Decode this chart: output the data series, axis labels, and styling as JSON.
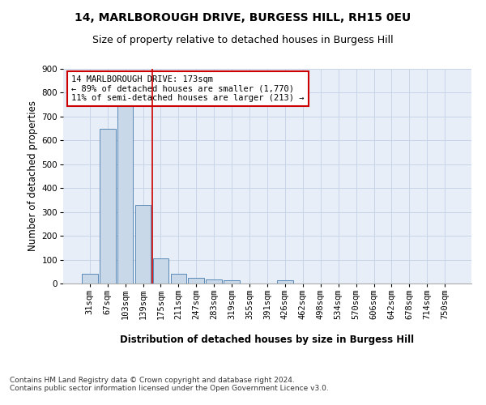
{
  "title_line1": "14, MARLBOROUGH DRIVE, BURGESS HILL, RH15 0EU",
  "title_line2": "Size of property relative to detached houses in Burgess Hill",
  "xlabel": "Distribution of detached houses by size in Burgess Hill",
  "ylabel": "Number of detached properties",
  "categories": [
    "31sqm",
    "67sqm",
    "103sqm",
    "139sqm",
    "175sqm",
    "211sqm",
    "247sqm",
    "283sqm",
    "319sqm",
    "355sqm",
    "391sqm",
    "426sqm",
    "462sqm",
    "498sqm",
    "534sqm",
    "570sqm",
    "606sqm",
    "642sqm",
    "678sqm",
    "714sqm",
    "750sqm"
  ],
  "values": [
    40,
    650,
    760,
    330,
    105,
    40,
    25,
    18,
    12,
    0,
    0,
    15,
    0,
    0,
    0,
    0,
    0,
    0,
    0,
    0,
    0
  ],
  "bar_color": "#c8d8e8",
  "bar_edge_color": "#5a8ab8",
  "bar_edge_width": 0.7,
  "grid_color": "#c8d4e8",
  "background_color": "#e8eef8",
  "property_line_color": "#cc0000",
  "annotation_text": "14 MARLBOROUGH DRIVE: 173sqm\n← 89% of detached houses are smaller (1,770)\n11% of semi-detached houses are larger (213) →",
  "annotation_box_color": "#cc0000",
  "ylim": [
    0,
    900
  ],
  "yticks": [
    0,
    100,
    200,
    300,
    400,
    500,
    600,
    700,
    800,
    900
  ],
  "footnote": "Contains HM Land Registry data © Crown copyright and database right 2024.\nContains public sector information licensed under the Open Government Licence v3.0.",
  "title_fontsize": 10,
  "subtitle_fontsize": 9,
  "axis_label_fontsize": 8.5,
  "tick_fontsize": 7.5,
  "annotation_fontsize": 7.5
}
